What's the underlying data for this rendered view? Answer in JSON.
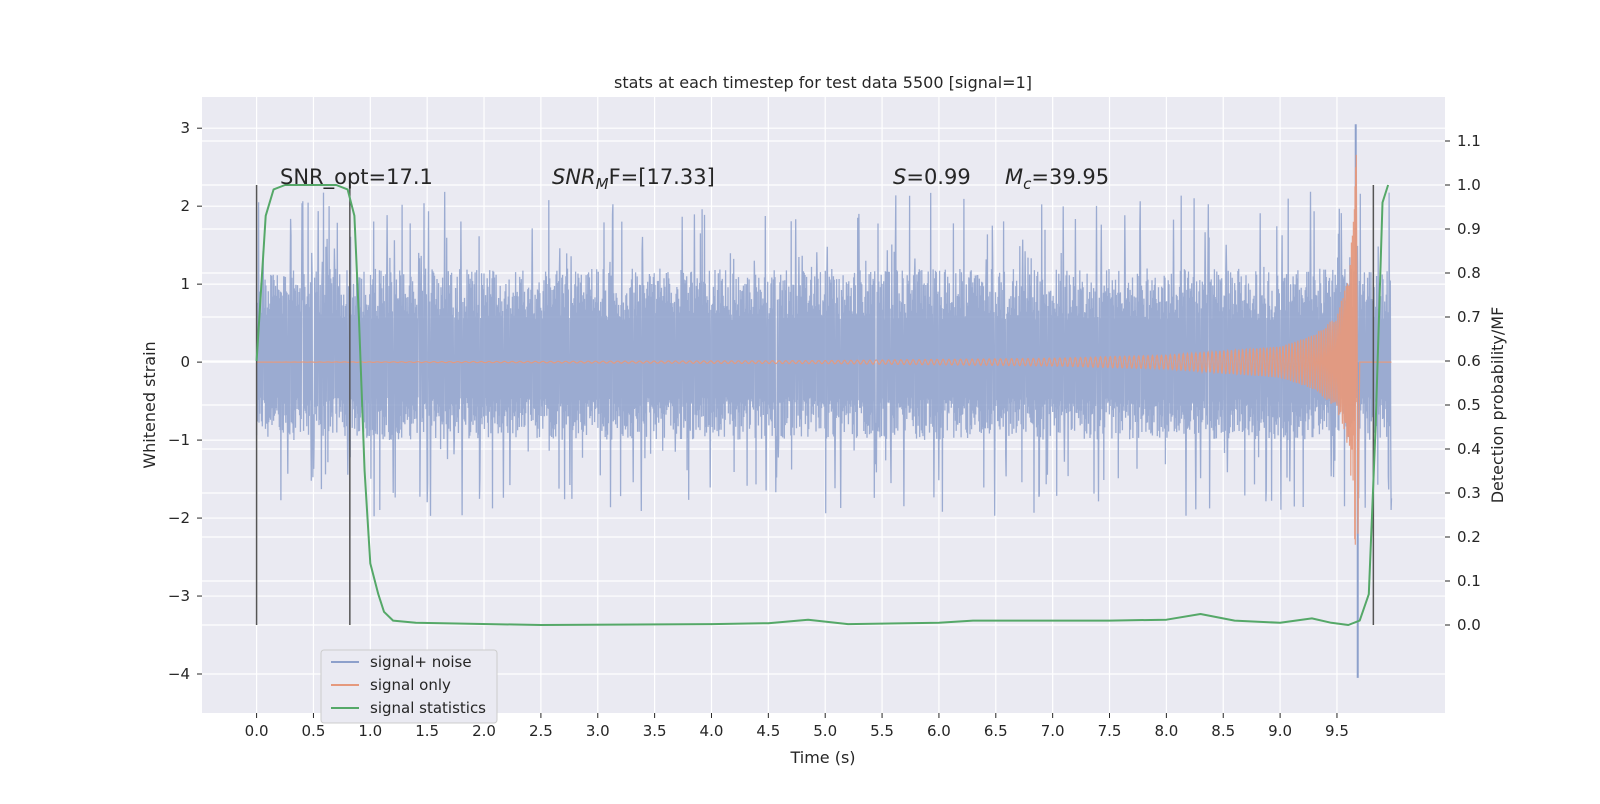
{
  "chart_data": {
    "type": "line",
    "title": "stats at each timestep for test data 5500 [signal=1]",
    "xlabel": "Time (s)",
    "ylabel": "Whitened strain",
    "ylabel_right": "Detection probability/MF",
    "xlim": [
      -0.48,
      10.45
    ],
    "ylim": [
      -4.5,
      3.4
    ],
    "ylim_right": [
      -0.2,
      1.2
    ],
    "x_ticks": [
      "0.0",
      "0.5",
      "1.0",
      "1.5",
      "2.0",
      "2.5",
      "3.0",
      "3.5",
      "4.0",
      "4.5",
      "5.0",
      "5.5",
      "6.0",
      "6.5",
      "7.0",
      "7.5",
      "8.0",
      "8.5",
      "9.0",
      "9.5"
    ],
    "y_ticks": [
      "3",
      "2",
      "1",
      "0",
      "−1",
      "−2",
      "−3",
      "−4"
    ],
    "y_ticks_right": [
      "1.1",
      "1.0",
      "0.9",
      "0.8",
      "0.7",
      "0.6",
      "0.5",
      "0.4",
      "0.3",
      "0.2",
      "0.1",
      "0.0"
    ],
    "grid": true,
    "legend_position": "lower-left",
    "annotations": {
      "snr_opt": "SNR_opt=17.1",
      "snr_mf_base": "SNR",
      "snr_mf_sub": "M",
      "snr_mf_rest": "F=[17.33]",
      "s_sym": "S",
      "s_val": "=0.99",
      "mc_sym": "M",
      "mc_sub": "c",
      "mc_val": "=39.95"
    },
    "vlines_x": [
      0.0,
      0.82,
      9.82
    ],
    "noise": {
      "name": "signal+ noise",
      "color": "#8da0cb",
      "x_range": [
        0.0,
        9.98
      ],
      "band": [
        -1.0,
        1.2
      ],
      "typical_peaks": [
        -2.0,
        2.2
      ],
      "max": 3.05,
      "min": -4.05
    },
    "signal": {
      "name": "signal only",
      "color": "#e5997d",
      "chirp_end": 9.67,
      "amplitude_points": [
        [
          0.0,
          0.0
        ],
        [
          5.0,
          0.02
        ],
        [
          7.0,
          0.05
        ],
        [
          8.0,
          0.09
        ],
        [
          9.0,
          0.2
        ],
        [
          9.3,
          0.35
        ],
        [
          9.5,
          0.6
        ],
        [
          9.6,
          1.1
        ],
        [
          9.64,
          1.8
        ],
        [
          9.67,
          2.7
        ]
      ]
    },
    "statistics": {
      "name": "signal statistics",
      "color": "#55a868",
      "points": [
        [
          0.0,
          0.6
        ],
        [
          0.08,
          0.93
        ],
        [
          0.15,
          0.99
        ],
        [
          0.25,
          1.0
        ],
        [
          0.55,
          1.0
        ],
        [
          0.7,
          1.0
        ],
        [
          0.8,
          0.99
        ],
        [
          0.86,
          0.93
        ],
        [
          0.9,
          0.7
        ],
        [
          0.95,
          0.35
        ],
        [
          1.0,
          0.14
        ],
        [
          1.07,
          0.07
        ],
        [
          1.12,
          0.03
        ],
        [
          1.2,
          0.01
        ],
        [
          1.4,
          0.005
        ],
        [
          2.5,
          0.0
        ],
        [
          4.0,
          0.002
        ],
        [
          4.5,
          0.004
        ],
        [
          4.85,
          0.012
        ],
        [
          5.2,
          0.002
        ],
        [
          6.0,
          0.005
        ],
        [
          6.3,
          0.01
        ],
        [
          6.8,
          0.01
        ],
        [
          7.5,
          0.01
        ],
        [
          8.0,
          0.012
        ],
        [
          8.3,
          0.025
        ],
        [
          8.6,
          0.01
        ],
        [
          9.0,
          0.005
        ],
        [
          9.28,
          0.015
        ],
        [
          9.45,
          0.005
        ],
        [
          9.6,
          0.0
        ],
        [
          9.7,
          0.01
        ],
        [
          9.78,
          0.07
        ],
        [
          9.84,
          0.45
        ],
        [
          9.9,
          0.96
        ],
        [
          9.95,
          1.0
        ]
      ]
    }
  }
}
